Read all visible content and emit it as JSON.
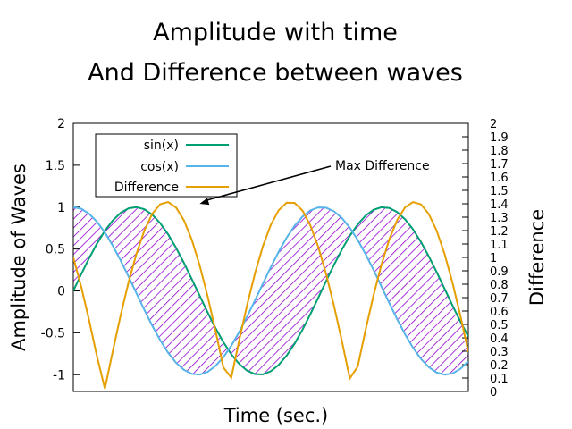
{
  "chart_data": {
    "type": "line",
    "title": [
      "Amplitude with time",
      "And Difference between waves"
    ],
    "xlabel": "Time (sec.)",
    "ylabel": "Amplitude of Waves",
    "y2label": "Difference",
    "xlim": [
      0,
      10
    ],
    "ylim": [
      -1.2,
      2
    ],
    "y2lim": [
      0,
      2
    ],
    "yticks": [
      "2",
      "1.5",
      "1",
      "0.5",
      "0",
      "-0.5",
      "-1"
    ],
    "y2ticks": [
      "2",
      "1.9",
      "1.8",
      "1.7",
      "1.6",
      "1.5",
      "1.4",
      "1.3",
      "1.2",
      "1.1",
      "1",
      "0.9",
      "0.8",
      "0.7",
      "0.6",
      "0.5",
      "0.4",
      "0.3",
      "0.2",
      "0.1",
      "0"
    ],
    "samples": 51,
    "series": [
      {
        "name": "sin(x)",
        "color": "#009e73",
        "axis": "y1",
        "function": "sin"
      },
      {
        "name": "cos(x)",
        "color": "#56b4e9",
        "axis": "y1",
        "function": "cos"
      },
      {
        "name": "Difference",
        "color": "#e69f00",
        "axis": "y2",
        "function": "|sin-cos|"
      }
    ],
    "fill_between": {
      "series": [
        "sin(x)",
        "cos(x)"
      ],
      "color": "#9400d3",
      "pattern": "diagonal-hatch"
    },
    "legend": {
      "position": "top-left"
    },
    "annotation": {
      "text": "Max Difference",
      "x": 3.2,
      "y2": 1.4
    },
    "grid": false
  }
}
